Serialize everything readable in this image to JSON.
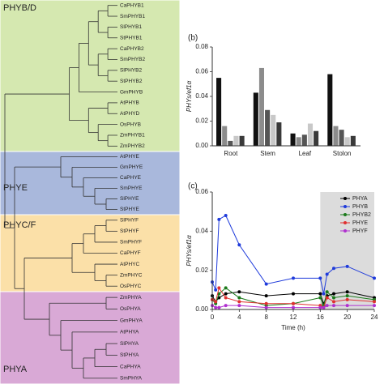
{
  "tree": {
    "groups": [
      {
        "label": "PHYB/D",
        "color": "#d5e8b0",
        "leaves": [
          "CaPHYB1",
          "SmPHYB1",
          "SlPHYB1",
          "StPHYB1",
          "CaPHYB2",
          "SmPHYB2",
          "SlPHYB2",
          "StPHYB2",
          "GmPHYB",
          "AtPHYB",
          "AtPHYD",
          "OsPHYB",
          "ZmPHYB1",
          "ZmPHYB2"
        ]
      },
      {
        "label": "PHYE",
        "color": "#a9b8dc",
        "leaves": [
          "AtPHYE",
          "GmPHYE",
          "CaPHYE",
          "SmPHYE",
          "SlPHYE",
          "StPHYE"
        ]
      },
      {
        "label": "PHYC/F",
        "color": "#fbe0a8",
        "leaves": [
          "SlPHYF",
          "StPHYF",
          "SmPHYF",
          "CaPHYF",
          "AtPHYC",
          "ZmPHYC",
          "OsPHYC"
        ]
      },
      {
        "label": "PHYA",
        "color": "#d9a9d6",
        "leaves": [
          "ZmPHYA",
          "OsPHYA",
          "GmPHYA",
          "AtPHYA",
          "SlPHYA",
          "StPHYA",
          "CaPHYA",
          "SmPHYA"
        ]
      }
    ]
  },
  "chart_data": [
    {
      "type": "bar",
      "panel": "(b)",
      "y_label": "PHYs/ef1α",
      "categories": [
        "Root",
        "Stem",
        "Leaf",
        "Stolon"
      ],
      "series": [
        {
          "color": "#111111",
          "values": [
            0.055,
            0.043,
            0.01,
            0.058
          ]
        },
        {
          "color": "#8c8c8c",
          "values": [
            0.016,
            0.063,
            0.007,
            0.016
          ]
        },
        {
          "color": "#555555",
          "values": [
            0.004,
            0.029,
            0.009,
            0.013
          ]
        },
        {
          "color": "#c8c8c8",
          "values": [
            0.008,
            0.025,
            0.018,
            0.007
          ]
        },
        {
          "color": "#3a3a3a",
          "values": [
            0.008,
            0.019,
            0.012,
            0.008
          ]
        }
      ],
      "ylim": [
        0,
        0.08
      ],
      "yticks": [
        {
          "value": 0,
          "label": "0.00"
        },
        {
          "value": 0.02,
          "label": "0.02"
        },
        {
          "value": 0.04,
          "label": "0.04"
        },
        {
          "value": 0.06,
          "label": "0.06"
        },
        {
          "value": 0.08,
          "label": "0.08"
        }
      ]
    },
    {
      "type": "line",
      "panel": "(c)",
      "y_label": "PHYs/ef1α",
      "x_label": "Time (h)",
      "x": [
        0,
        0.5,
        1,
        2,
        4,
        8,
        12,
        16,
        16.5,
        17,
        18,
        20,
        24
      ],
      "shade": [
        16,
        24
      ],
      "shade_color": "#dcdcdc",
      "legend": "upper right",
      "series": [
        {
          "name": "PHYA",
          "color": "#000000",
          "values": [
            0.007,
            0.004,
            0.006,
            0.008,
            0.009,
            0.007,
            0.008,
            0.008,
            0.003,
            0.007,
            0.008,
            0.009,
            0.006
          ]
        },
        {
          "name": "PHYB",
          "color": "#1f3bdb",
          "values": [
            0.014,
            0.01,
            0.046,
            0.048,
            0.033,
            0.013,
            0.016,
            0.016,
            0.008,
            0.018,
            0.021,
            0.022,
            0.016
          ]
        },
        {
          "name": "PHYB2",
          "color": "#1b7a1b",
          "values": [
            0.005,
            0.003,
            0.008,
            0.011,
            0.006,
            0.002,
            0.003,
            0.006,
            0.002,
            0.009,
            0.006,
            0.007,
            0.005
          ]
        },
        {
          "name": "PHYE",
          "color": "#e03030",
          "values": [
            0.005,
            0.004,
            0.011,
            0.006,
            0.004,
            0.003,
            0.003,
            0.002,
            0.001,
            0.006,
            0.004,
            0.005,
            0.004
          ]
        },
        {
          "name": "PHYF",
          "color": "#b030d0",
          "values": [
            0.002,
            0.001,
            0.001,
            0.002,
            0.002,
            0.001,
            0.001,
            0.001,
            0.001,
            0.002,
            0.002,
            0.002,
            0.002
          ]
        }
      ],
      "xlim": [
        0,
        24
      ],
      "xticks": [
        0,
        4,
        8,
        12,
        16,
        20,
        24
      ],
      "ylim": [
        0,
        0.06
      ],
      "yticks": [
        {
          "value": 0,
          "label": "0.00"
        },
        {
          "value": 0.02,
          "label": "0.02"
        },
        {
          "value": 0.04,
          "label": "0.04"
        },
        {
          "value": 0.06,
          "label": "0.06"
        }
      ]
    }
  ]
}
